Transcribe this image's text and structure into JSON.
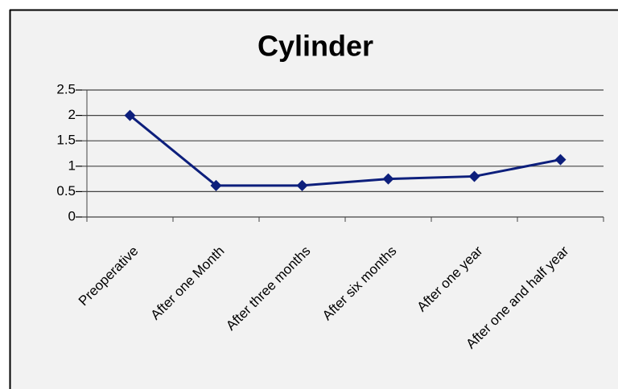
{
  "chart_data": {
    "type": "line",
    "title": "Cylinder",
    "categories": [
      "Preoperative",
      "After one Month",
      "After three months",
      "After six months",
      "After one year",
      "After one and half year"
    ],
    "series": [
      {
        "color": "#0d1f7c",
        "values": [
          2,
          0.62,
          0.62,
          0.75,
          0.8,
          1.13
        ]
      }
    ],
    "ylim": [
      0,
      2.5
    ],
    "yticks": [
      0,
      0.5,
      1,
      1.5,
      2,
      2.5
    ],
    "grid": true
  }
}
